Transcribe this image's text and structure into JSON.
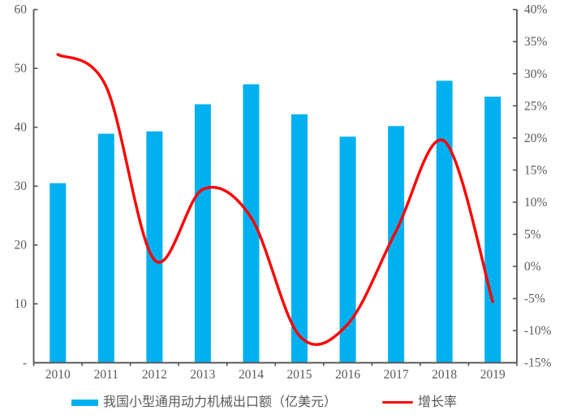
{
  "colors": {
    "bar": "#00B0F0",
    "line": "#FE0000",
    "axis": "#555555",
    "text": "#595959",
    "background": "#FFFFFF"
  },
  "legend": {
    "bar_label": "我国小型通用动力机械出口额（亿美元）",
    "line_label": "增长率"
  },
  "chart_data": {
    "type": "bar",
    "subtype": "combo-bar-line",
    "title": "",
    "categories": [
      "2010",
      "2011",
      "2012",
      "2013",
      "2014",
      "2015",
      "2016",
      "2017",
      "2018",
      "2019"
    ],
    "series": [
      {
        "name": "我国小型通用动力机械出口额（亿美元）",
        "type": "bar",
        "axis": "left",
        "values": [
          30.5,
          38.9,
          39.3,
          43.9,
          47.3,
          42.2,
          38.4,
          40.2,
          47.9,
          45.2
        ]
      },
      {
        "name": "增长率",
        "type": "line",
        "axis": "right",
        "smooth": true,
        "values": [
          33,
          28,
          1,
          12,
          7.6,
          -10.8,
          -9,
          5.5,
          19.5,
          -5.5
        ],
        "unit": "%"
      }
    ],
    "left_axis": {
      "min": 0,
      "max": 60,
      "step": 10,
      "zero_label": "-",
      "labels": [
        "-",
        "10",
        "20",
        "30",
        "40",
        "50",
        "60"
      ]
    },
    "right_axis": {
      "min": -15,
      "max": 40,
      "step": 5,
      "suffix": "%",
      "labels": [
        "-15%",
        "-10%",
        "-5%",
        "0%",
        "5%",
        "10%",
        "15%",
        "20%",
        "25%",
        "30%",
        "35%",
        "40%"
      ]
    },
    "grid": false,
    "legend_position": "bottom"
  }
}
